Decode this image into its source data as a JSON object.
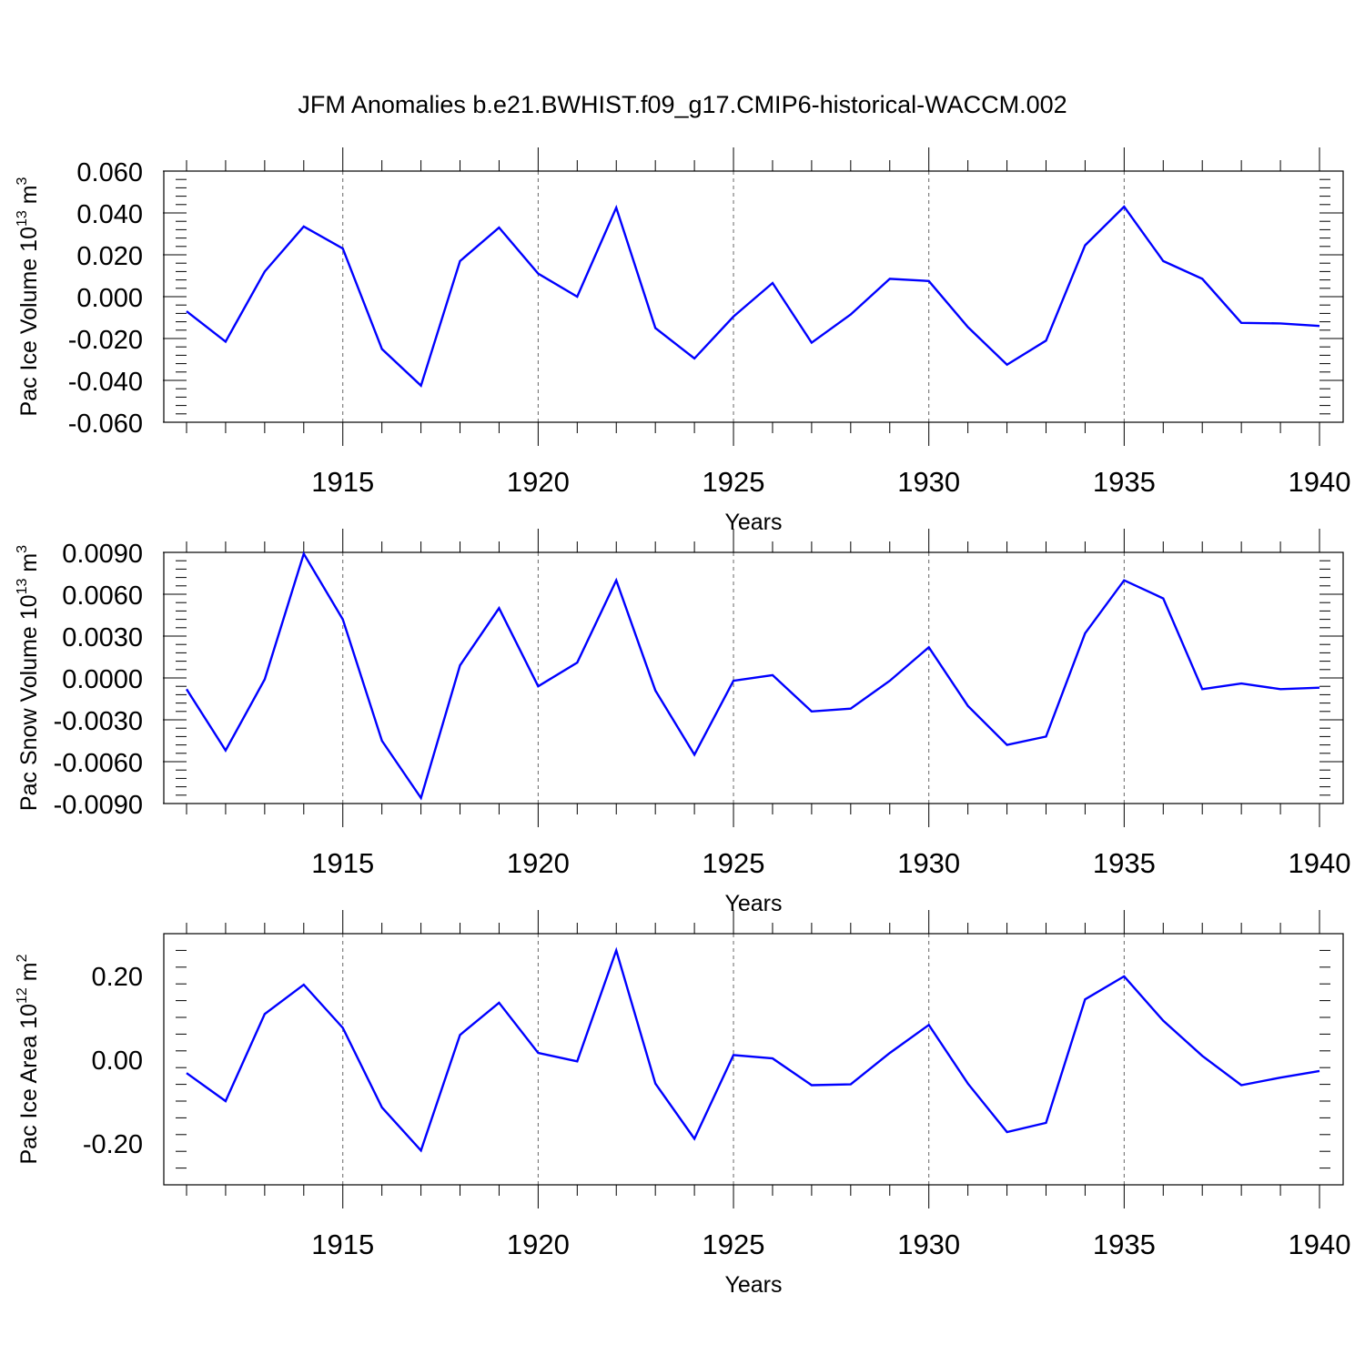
{
  "title": "JFM Anomalies b.e21.BWHIST.f09_g17.CMIP6-historical-WACCM.002",
  "colors": {
    "line": "#0000ff",
    "axis": "#000000",
    "grid": "#666666"
  },
  "chart_data": [
    {
      "type": "line",
      "ylabel": {
        "text": "Pac Ice Volume 10",
        "exp": "13",
        "unit": " m",
        "unit_exp": "3"
      },
      "xlabel": "Years",
      "xlim": [
        1911,
        1940
      ],
      "ylim": [
        -0.06,
        0.06
      ],
      "yticks": [
        -0.06,
        -0.04,
        -0.02,
        0.0,
        0.02,
        0.04,
        0.06
      ],
      "ytick_labels": [
        "-0.060",
        "-0.040",
        "-0.020",
        "0.000",
        "0.020",
        "0.040",
        "0.060"
      ],
      "xticks": [
        1915,
        1920,
        1925,
        1930,
        1935,
        1940
      ],
      "xtick_labels": [
        "1915",
        "1920",
        "1925",
        "1930",
        "1935",
        "1940"
      ],
      "grid": "vertical dashed at labeled years",
      "x": [
        1911,
        1912,
        1913,
        1914,
        1915,
        1916,
        1917,
        1918,
        1919,
        1920,
        1921,
        1922,
        1923,
        1924,
        1925,
        1926,
        1927,
        1928,
        1929,
        1930,
        1931,
        1932,
        1933,
        1934,
        1935,
        1936,
        1937,
        1938,
        1939,
        1940
      ],
      "values": [
        -0.007,
        -0.0215,
        0.012,
        0.0335,
        0.023,
        -0.025,
        -0.0425,
        0.017,
        0.033,
        0.011,
        0.0,
        0.0425,
        -0.015,
        -0.0295,
        -0.0095,
        0.0065,
        -0.022,
        -0.0085,
        0.0085,
        0.0075,
        -0.0145,
        -0.0325,
        -0.021,
        0.0245,
        0.043,
        0.017,
        0.0085,
        -0.0125,
        -0.0128,
        -0.014
      ]
    },
    {
      "type": "line",
      "ylabel": {
        "text": "Pac Snow Volume 10",
        "exp": "13",
        "unit": " m",
        "unit_exp": "3"
      },
      "xlabel": "Years",
      "xlim": [
        1911,
        1940
      ],
      "ylim": [
        -0.009,
        0.009
      ],
      "yticks": [
        -0.009,
        -0.006,
        -0.003,
        0.0,
        0.003,
        0.006,
        0.009
      ],
      "ytick_labels": [
        "-0.0090",
        "-0.0060",
        "-0.0030",
        "0.0000",
        "0.0030",
        "0.0060",
        "0.0090"
      ],
      "xticks": [
        1915,
        1920,
        1925,
        1930,
        1935,
        1940
      ],
      "xtick_labels": [
        "1915",
        "1920",
        "1925",
        "1930",
        "1935",
        "1940"
      ],
      "grid": "vertical dashed at labeled years",
      "x": [
        1911,
        1912,
        1913,
        1914,
        1915,
        1916,
        1917,
        1918,
        1919,
        1920,
        1921,
        1922,
        1923,
        1924,
        1925,
        1926,
        1927,
        1928,
        1929,
        1930,
        1931,
        1932,
        1933,
        1934,
        1935,
        1936,
        1937,
        1938,
        1939,
        1940
      ],
      "values": [
        -0.0008,
        -0.0052,
        -0.0001,
        0.0089,
        0.0042,
        -0.0045,
        -0.0086,
        0.0009,
        0.005,
        -0.0006,
        0.0011,
        0.007,
        -0.0009,
        -0.0055,
        -0.0002,
        0.0002,
        -0.0024,
        -0.0022,
        -0.0002,
        0.0022,
        -0.002,
        -0.0048,
        -0.0042,
        0.0032,
        0.007,
        0.0057,
        -0.0008,
        -0.0004,
        -0.0008,
        -0.0007
      ]
    },
    {
      "type": "line",
      "ylabel": {
        "text": "Pac Ice Area 10",
        "exp": "12",
        "unit": " m",
        "unit_exp": "2"
      },
      "xlabel": "Years",
      "xlim": [
        1911,
        1940
      ],
      "ylim": [
        -0.3,
        0.3
      ],
      "yticks": [
        -0.2,
        0.0,
        0.2
      ],
      "ytick_labels": [
        "-0.20",
        "0.00",
        "0.20"
      ],
      "xticks": [
        1915,
        1920,
        1925,
        1930,
        1935,
        1940
      ],
      "xtick_labels": [
        "1915",
        "1920",
        "1925",
        "1930",
        "1935",
        "1940"
      ],
      "grid": "vertical dashed at labeled years",
      "x": [
        1911,
        1912,
        1913,
        1914,
        1915,
        1916,
        1917,
        1918,
        1919,
        1920,
        1921,
        1922,
        1923,
        1924,
        1925,
        1926,
        1927,
        1928,
        1929,
        1930,
        1931,
        1932,
        1933,
        1934,
        1935,
        1936,
        1937,
        1938,
        1939,
        1940
      ],
      "values": [
        -0.033,
        -0.1,
        0.108,
        0.178,
        0.075,
        -0.115,
        -0.218,
        0.058,
        0.135,
        0.015,
        -0.005,
        0.26,
        -0.058,
        -0.19,
        0.01,
        0.002,
        -0.062,
        -0.06,
        0.015,
        0.082,
        -0.058,
        -0.174,
        -0.152,
        0.143,
        0.198,
        0.092,
        0.008,
        -0.062,
        -0.044,
        -0.028
      ]
    }
  ]
}
